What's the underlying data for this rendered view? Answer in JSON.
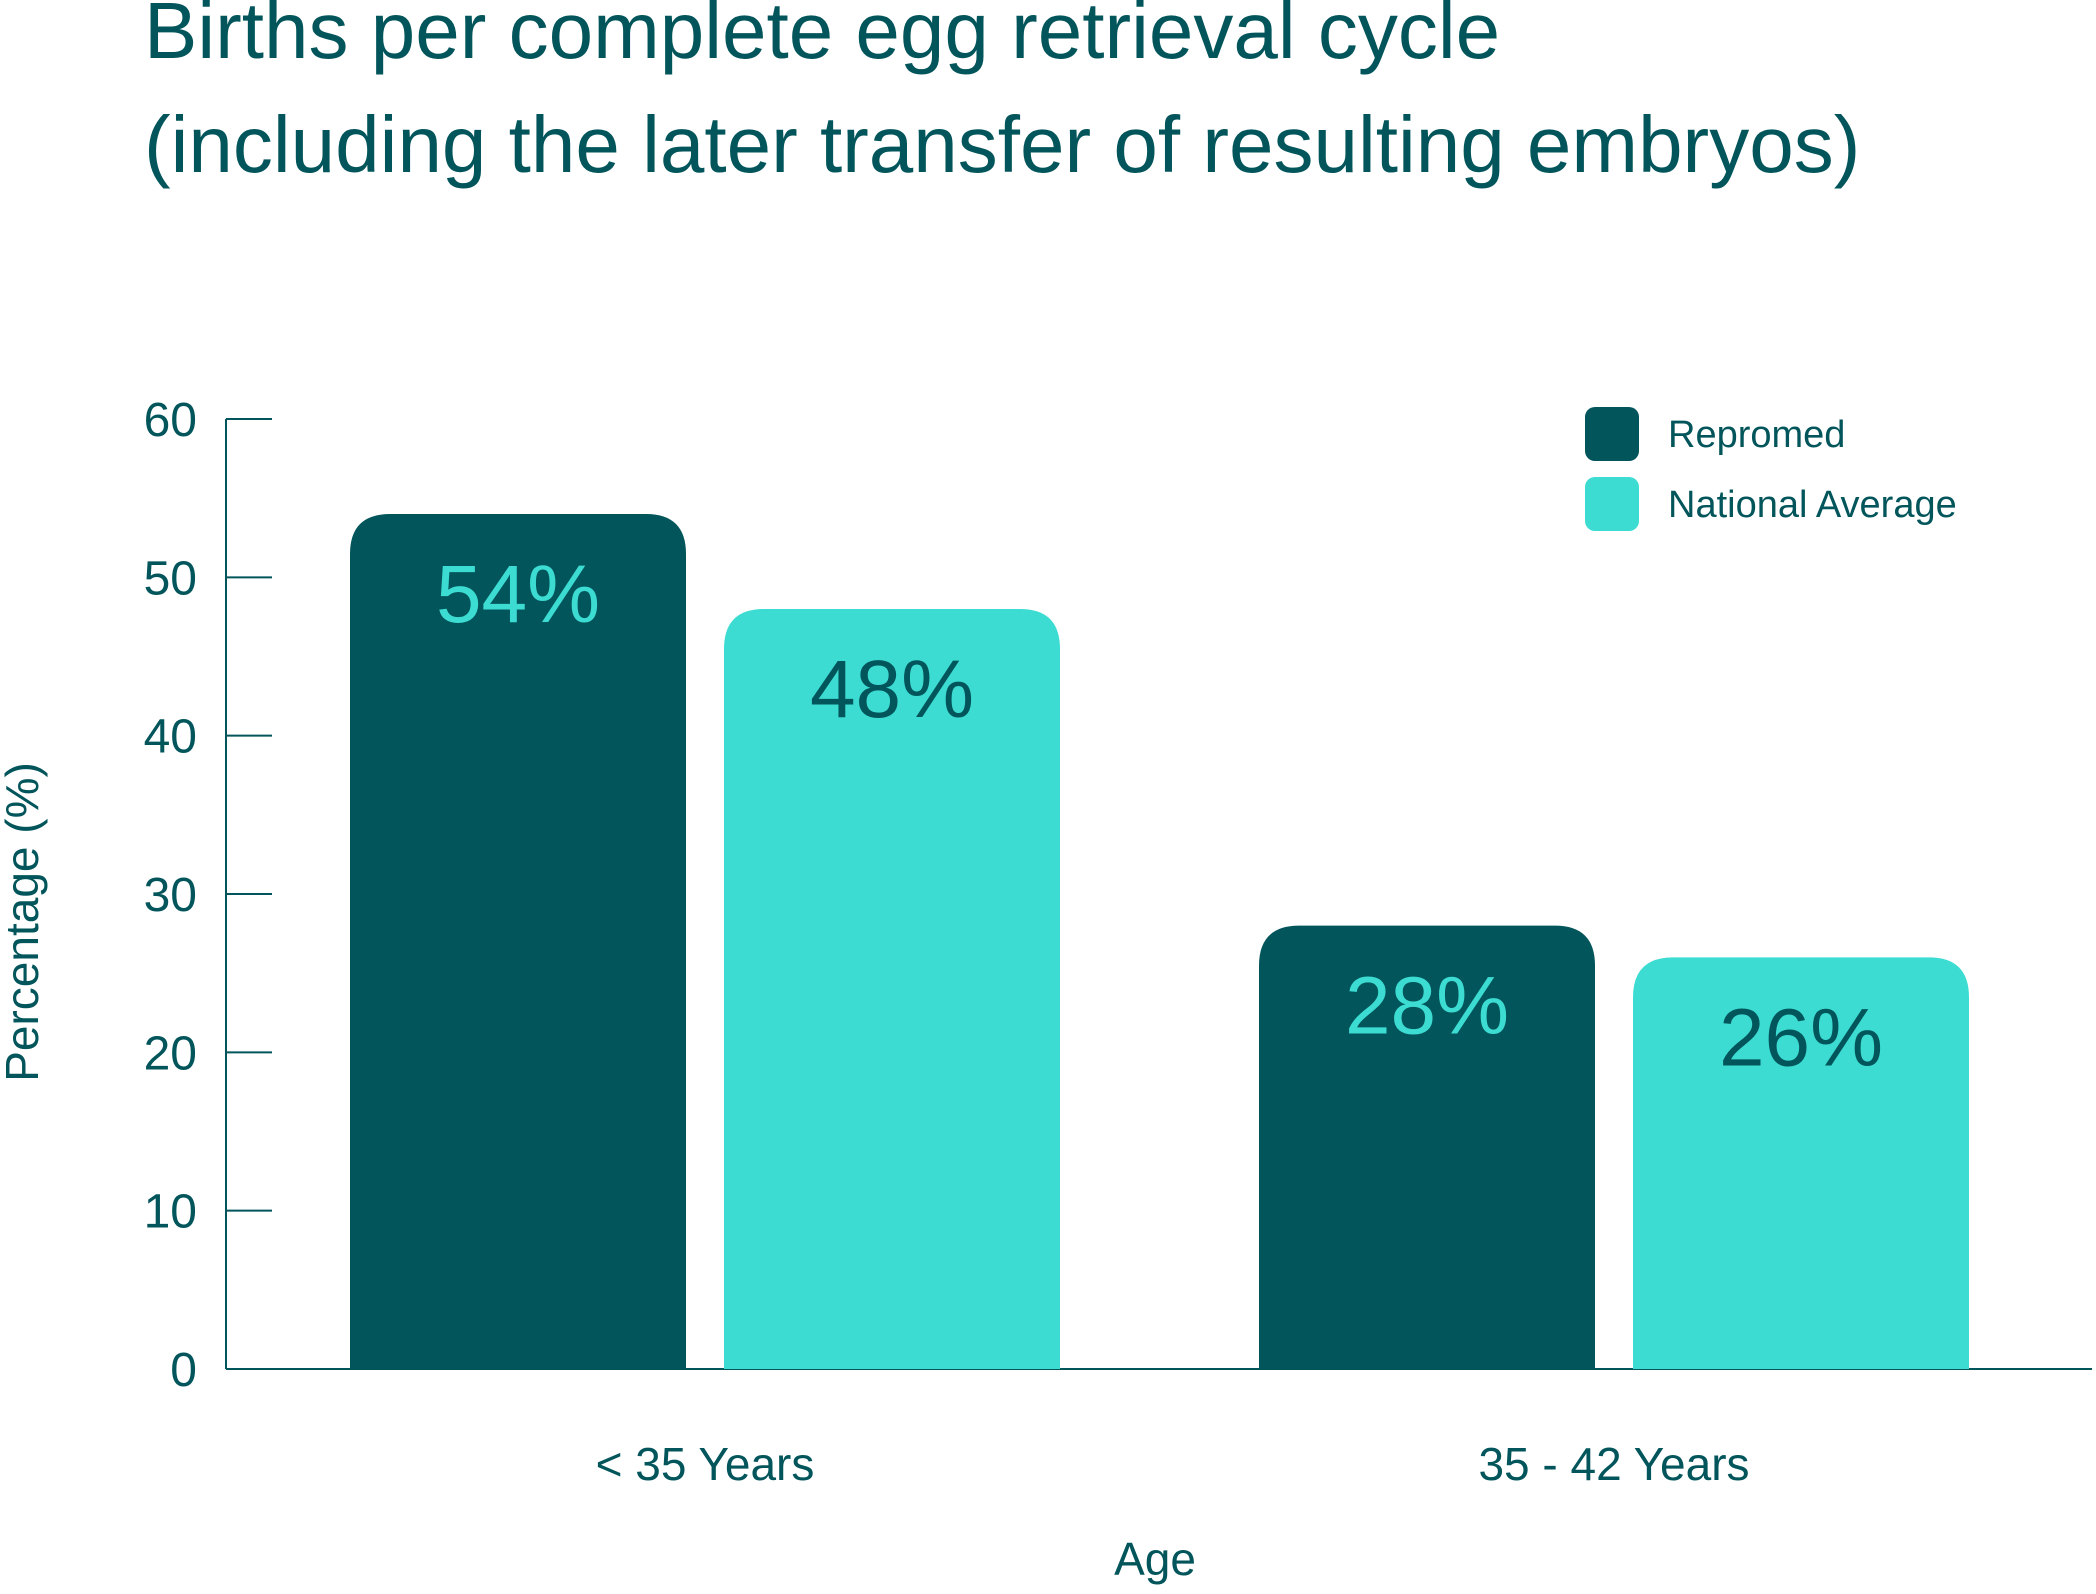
{
  "colors": {
    "text": "#02555a",
    "axis": "#02555a"
  },
  "chart_data": {
    "type": "bar",
    "title_lines": [
      "Births per complete egg retrieval cycle",
      "(including the later transfer of resulting embryos)"
    ],
    "xlabel": "Age",
    "ylabel": "Percentage (%)",
    "ylim": [
      0,
      60
    ],
    "yticks": [
      "0",
      "10",
      "20",
      "30",
      "40",
      "50",
      "60"
    ],
    "ytick_values": [
      0,
      10,
      20,
      30,
      40,
      50,
      60
    ],
    "categories": [
      "< 35 Years",
      "35 - 42 Years"
    ],
    "grid": false,
    "legend_position": "top-right",
    "series": [
      {
        "name": "Repromed",
        "color": "#02555a",
        "label_color": "#3cdcd3",
        "values": [
          54,
          28
        ],
        "labels": [
          "54%",
          "28%"
        ]
      },
      {
        "name": "National Average",
        "color": "#3cdcd3",
        "label_color": "#02555a",
        "values": [
          48,
          26
        ],
        "labels": [
          "48%",
          "26%"
        ]
      }
    ]
  }
}
